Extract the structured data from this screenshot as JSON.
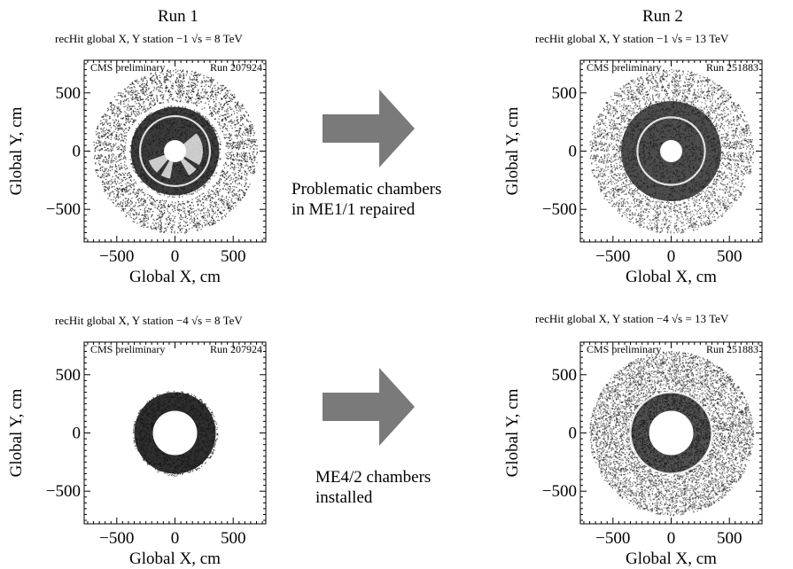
{
  "header": {
    "left_title": "Run 1",
    "right_title": "Run 2"
  },
  "captions": {
    "top": [
      "Problematic chambers",
      "in ME1/1 repaired"
    ],
    "bottom": [
      "ME4/2 chambers",
      "installed"
    ]
  },
  "colors": {
    "hits": "#141414",
    "arrow": "#7a7a7a"
  },
  "chart_data": [
    {
      "type": "scatter",
      "panel": "top-left",
      "subtitle": "recHit global X, Y station −1   √s = 8 TeV",
      "label_left": "CMS preliminary",
      "label_right": "Run 207924",
      "xlabel": "Global X, cm",
      "ylabel": "Global Y, cm",
      "xlim": [
        -780,
        780
      ],
      "ylim": [
        -780,
        780
      ],
      "xticks": [
        -500,
        0,
        500
      ],
      "yticks": [
        -500,
        0,
        500
      ],
      "tick_labels": [
        "−500",
        "0",
        "500"
      ],
      "grid": false,
      "structures": {
        "hole_radius": 95,
        "inner_ring": [
          95,
          380
        ],
        "inner_ring_white_gap": 300,
        "outer_ring": [
          430,
          705
        ],
        "outer_ring_segments": 36,
        "damaged_chambers": true,
        "density": 0.8
      }
    },
    {
      "type": "scatter",
      "panel": "top-right",
      "subtitle": "recHit global X, Y station −1   √s = 13 TeV",
      "label_left": "CMS preliminary",
      "label_right": "Run 251883",
      "xlabel": "Global X, cm",
      "ylabel": "Global Y, cm",
      "xlim": [
        -780,
        780
      ],
      "ylim": [
        -780,
        780
      ],
      "xticks": [
        -500,
        0,
        500
      ],
      "yticks": [
        -500,
        0,
        500
      ],
      "tick_labels": [
        "−500",
        "0",
        "500"
      ],
      "grid": false,
      "structures": {
        "hole_radius": 95,
        "inner_ring": [
          95,
          430
        ],
        "inner_ring_white_gap": 290,
        "outer_ring": [
          440,
          705
        ],
        "outer_ring_segments": 36,
        "damaged_chambers": false,
        "density": 0.6
      }
    },
    {
      "type": "scatter",
      "panel": "bottom-left",
      "subtitle": "recHit global X, Y station −4   √s = 8 TeV",
      "label_left": "CMS preliminary",
      "label_right": "Run 207924",
      "xlabel": "Global X, cm",
      "ylabel": "Global Y, cm",
      "xlim": [
        -780,
        780
      ],
      "ylim": [
        -780,
        780
      ],
      "xticks": [
        -500,
        0,
        500
      ],
      "yticks": [
        -500,
        0,
        500
      ],
      "tick_labels": [
        "−500",
        "0",
        "500"
      ],
      "grid": false,
      "structures": {
        "hole_radius": 190,
        "inner_ring": [
          190,
          350
        ],
        "inner_ring_white_gap": 0,
        "outer_ring": [
          0,
          0
        ],
        "outer_ring_segments": 0,
        "damaged_chambers": false,
        "density": 0.95
      }
    },
    {
      "type": "scatter",
      "panel": "bottom-right",
      "subtitle": "recHit global X, Y station −4   √s = 13 TeV",
      "label_left": "CMS preliminary",
      "label_right": "Run 251883",
      "xlabel": "Global X, cm",
      "ylabel": "Global Y, cm",
      "xlim": [
        -780,
        780
      ],
      "ylim": [
        -780,
        780
      ],
      "xticks": [
        -500,
        0,
        500
      ],
      "yticks": [
        -500,
        0,
        500
      ],
      "tick_labels": [
        "−500",
        "0",
        "500"
      ],
      "grid": false,
      "structures": {
        "hole_radius": 190,
        "inner_ring": [
          190,
          350
        ],
        "inner_ring_white_gap": 350,
        "outer_ring": [
          365,
          705
        ],
        "outer_ring_segments": 0,
        "damaged_chambers": false,
        "density": 0.55
      }
    }
  ]
}
